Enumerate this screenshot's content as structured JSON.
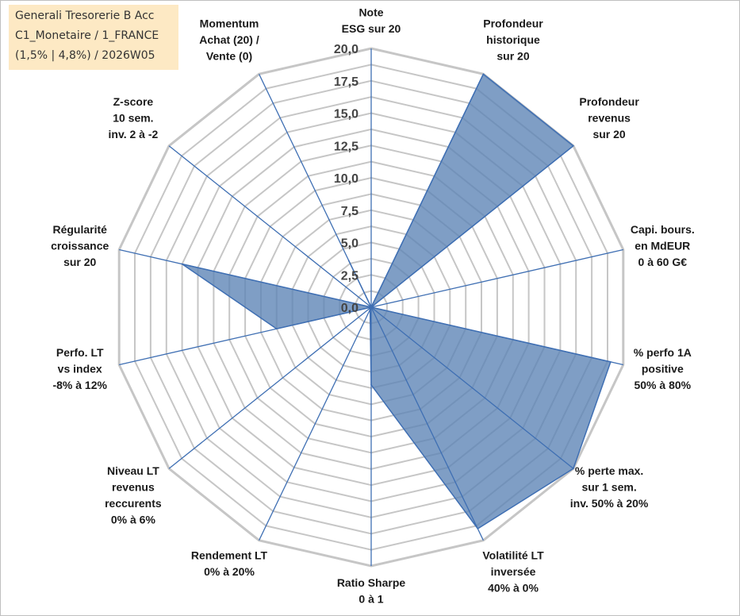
{
  "fund": {
    "line1": "Generali Tresorerie B Acc",
    "line2": "C1_Monetaire / 1_FRANCE",
    "line3": "(1,5% | 4,8%) / 2026W05"
  },
  "chart_data": {
    "type": "radar",
    "title": "",
    "rmin": 0,
    "rmax": 20,
    "ticks": [
      "0,0",
      "2,5",
      "5,0",
      "7,5",
      "10,0",
      "12,5",
      "15,0",
      "17,5",
      "20,0"
    ],
    "grid": true,
    "axes": [
      {
        "label": [
          "Note",
          "ESG sur 20"
        ],
        "value": 0
      },
      {
        "label": [
          "Profondeur",
          "historique",
          "sur 20"
        ],
        "value": 20
      },
      {
        "label": [
          "Profondeur",
          "revenus",
          "sur 20"
        ],
        "value": 20
      },
      {
        "label": [
          "Capi. bours.",
          "en MdEUR",
          "0 à 60 G€"
        ],
        "value": 0
      },
      {
        "label": [
          "% perfo 1A",
          "positive",
          "50% à 80%"
        ],
        "value": 19
      },
      {
        "label": [
          "% perte max.",
          "sur 1 sem.",
          "inv. 50% à 20%"
        ],
        "value": 20
      },
      {
        "label": [
          "Volatilité LT",
          "inversée",
          "40% à 0%"
        ],
        "value": 19
      },
      {
        "label": [
          "Ratio Sharpe",
          "0 à 1"
        ],
        "value": 6
      },
      {
        "label": [
          "Rendement LT",
          "0% à 20%"
        ],
        "value": 0.2
      },
      {
        "label": [
          "Niveau LT",
          "revenus",
          "reccurents",
          "0% à 6%"
        ],
        "value": 0
      },
      {
        "label": [
          "Perfo. LT",
          "vs index",
          "-8% à 12%"
        ],
        "value": 7.5
      },
      {
        "label": [
          "Régularité",
          "croissance",
          "sur 20"
        ],
        "value": 15
      },
      {
        "label": [
          "Z-score",
          "10 sem.",
          "inv. 2 à -2"
        ],
        "value": 0
      },
      {
        "label": [
          "Momentum",
          "Achat (20) /",
          "Vente (0)"
        ],
        "value": 4
      }
    ],
    "colors": {
      "fill": "#5b83b5",
      "stroke": "#3f6fb3",
      "spoke": "#3f6fb3",
      "grid": "#c6c6c6"
    }
  }
}
